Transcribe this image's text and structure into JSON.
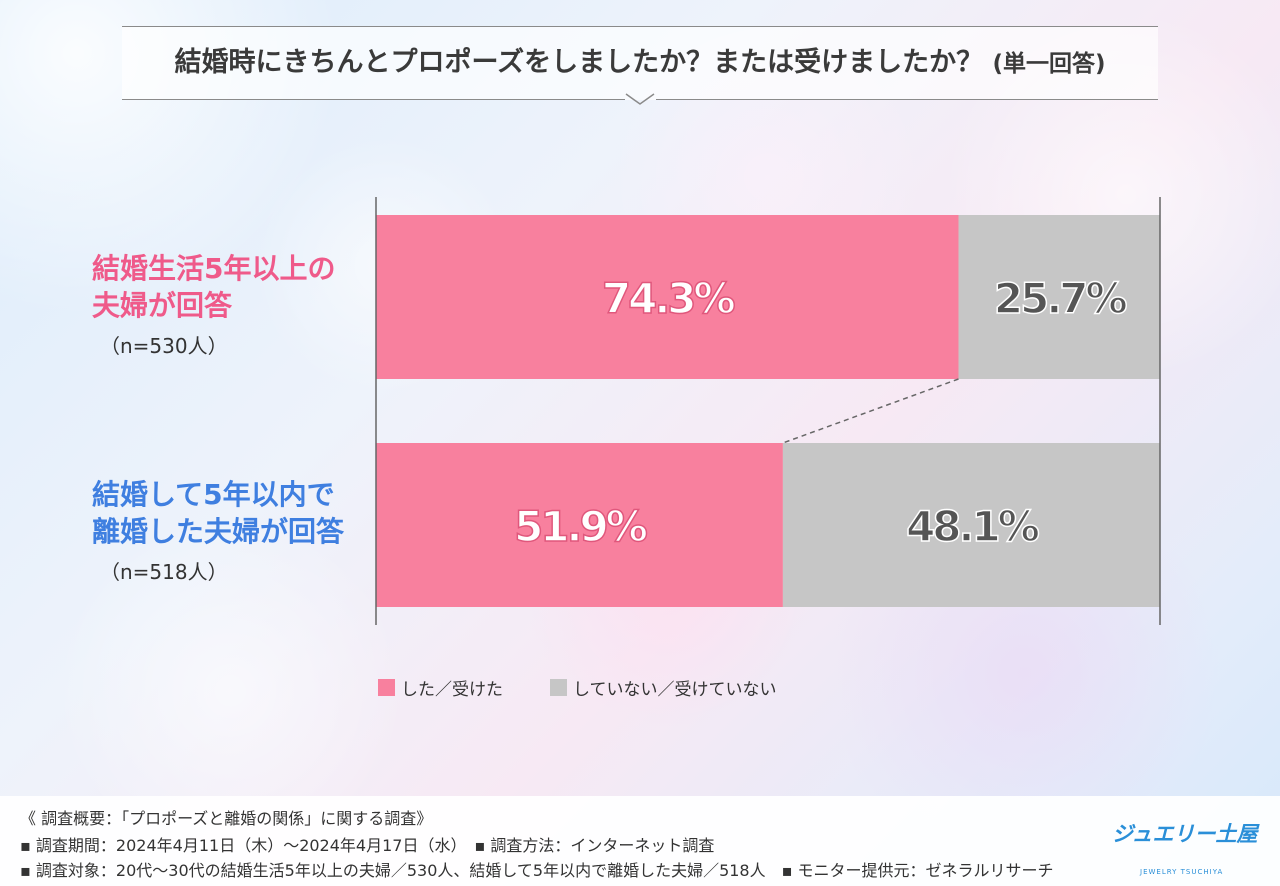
{
  "title": {
    "main": "結婚時にきちんとプロポーズをしましたか？または受けましたか？",
    "sub": "(単一回答)"
  },
  "rows": [
    {
      "label_lines": [
        "結婚生活5年以上の",
        "夫婦が回答"
      ],
      "n_label": "（n=530人）",
      "values": [
        74.3,
        25.7
      ],
      "value_labels": [
        "74.3%",
        "25.7%"
      ]
    },
    {
      "label_lines": [
        "結婚して5年以内で",
        "離婚した夫婦が回答"
      ],
      "n_label": "（n=518人）",
      "values": [
        51.9,
        48.1
      ],
      "value_labels": [
        "51.9%",
        "48.1%"
      ]
    }
  ],
  "legend": {
    "items": [
      {
        "label": "した／受けた",
        "color": "#f8809e"
      },
      {
        "label": "していない／受けていない",
        "color": "#c6c6c6"
      }
    ]
  },
  "colors": {
    "yes": "#f8809e",
    "no": "#c6c6c6",
    "label_row1": "#ef5a8a",
    "label_row2": "#3f7fe0"
  },
  "chart_data": {
    "type": "bar",
    "orientation": "horizontal",
    "stacked": true,
    "categories": [
      "結婚生活5年以上の夫婦が回答",
      "結婚して5年以内で離婚した夫婦が回答"
    ],
    "series": [
      {
        "name": "した／受けた",
        "values": [
          74.3,
          51.9
        ]
      },
      {
        "name": "していない／受けていない",
        "values": [
          25.7,
          48.1
        ]
      }
    ],
    "xlim": [
      0,
      100
    ],
    "legend_position": "bottom",
    "grid": false
  },
  "footer": {
    "lines": [
      "《 調査概要：「プロポーズと離婚の関係」に関する調査》",
      "▪ 調査期間：2024年4月11日（木）〜2024年4月17日（水）　▪ 調査方法：インターネット調査",
      "▪ 調査対象：20代〜30代の結婚生活5年以上の夫婦／530人、結婚して5年以内で離婚した夫婦／518人　▪ モニター提供元：ゼネラルリサーチ"
    ],
    "logo_main": "ジュエリー土屋",
    "logo_sub": "JEWELRY TSUCHIYA"
  }
}
